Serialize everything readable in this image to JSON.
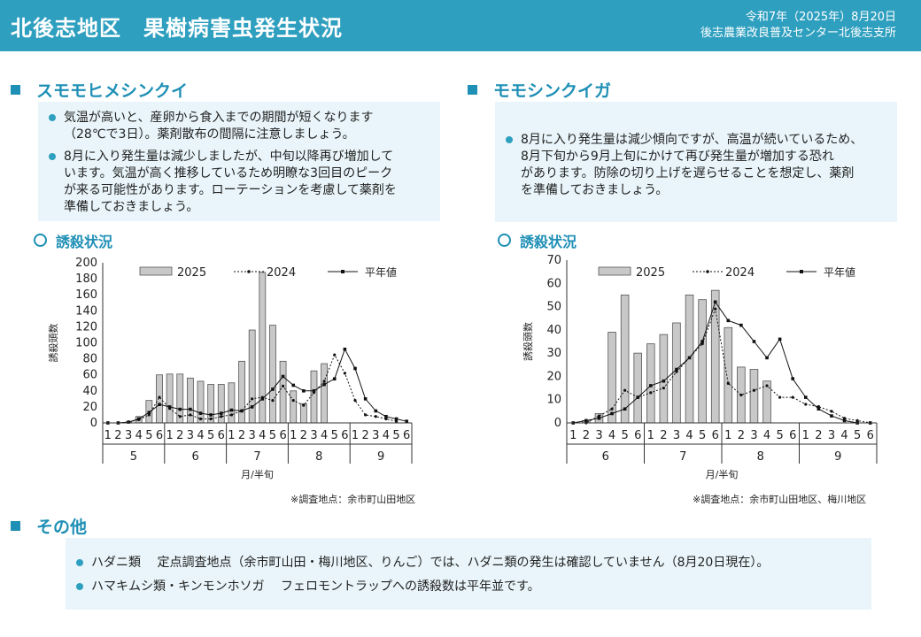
{
  "header": {
    "title": "北後志地区　果樹病害虫発生状況",
    "date": "令和7年（2025年）8月20日",
    "org": "後志農業改良普及センター北後志支所"
  },
  "left": {
    "title": "スモモヒメシンクイ",
    "bullets": [
      [
        "気温が高いと、産卵から食入までの期間が短くなります",
        "（28℃で3日）。薬剤散布の間隔に注意しましょう。"
      ],
      [
        "8月に入り発生量は減少しましたが、中旬以降再び増加して",
        "います。気温が高く推移しているため明瞭な3回目のピーク",
        "が来る可能性があります。ローテーションを考慮して薬剤を",
        "準備しておきましょう。"
      ]
    ],
    "chart_title": "誘殺状況",
    "note": "※調査地点：余市町山田地区"
  },
  "right": {
    "title": "モモシンクイガ",
    "bullets": [
      [
        "8月に入り発生量は減少傾向ですが、高温が続いているため、",
        "8月下旬から9月上旬にかけて再び発生量が増加する恐れ",
        "があります。防除の切り上げを遅らせることを想定し、薬剤",
        "を準備しておきましょう。"
      ]
    ],
    "chart_title": "誘殺状況",
    "note": "※調査地点：余市町山田地区、梅川地区"
  },
  "other": {
    "title": "その他",
    "items": [
      "ハダニ類　 定点調査地点（余市町山田・梅川地区、りんご）では、ハダニ類の発生は確認していません（8月20日現在）。",
      "ハマキムシ類・キンモンホソガ　 フェロモントラップへの誘殺数は平年並です。"
    ]
  },
  "chart_data": [
    {
      "type": "bar",
      "id": "sumomo",
      "title": "誘殺状況",
      "xlabel": "月/半旬",
      "ylabel": "誘殺頭数",
      "ylim": [
        0,
        200
      ],
      "yticks": [
        0,
        20,
        40,
        60,
        80,
        100,
        120,
        140,
        160,
        180,
        200
      ],
      "months": [
        {
          "label": "5",
          "halves": [
            "1",
            "2",
            "3",
            "4",
            "5",
            "6"
          ]
        },
        {
          "label": "6",
          "halves": [
            "1",
            "2",
            "3",
            "4",
            "5",
            "6"
          ]
        },
        {
          "label": "7",
          "halves": [
            "1",
            "2",
            "3",
            "4",
            "5",
            "6"
          ]
        },
        {
          "label": "8",
          "halves": [
            "1",
            "2",
            "3",
            "4",
            "5",
            "6"
          ]
        },
        {
          "label": "9",
          "halves": [
            "1",
            "2",
            "3",
            "4",
            "5",
            "6"
          ]
        }
      ],
      "legend": [
        "2025",
        "2024",
        "平年値"
      ],
      "series": [
        {
          "name": "2025",
          "kind": "bar",
          "values": [
            0,
            0,
            1,
            8,
            28,
            60,
            61,
            61,
            56,
            52,
            48,
            48,
            50,
            77,
            116,
            188,
            122,
            77,
            40,
            24,
            65,
            74,
            null,
            null,
            null,
            null,
            null,
            null,
            null,
            null
          ]
        },
        {
          "name": "2024",
          "kind": "dotted",
          "values": [
            0,
            0,
            1,
            4,
            10,
            32,
            18,
            8,
            10,
            5,
            5,
            8,
            10,
            15,
            30,
            32,
            28,
            46,
            28,
            22,
            38,
            52,
            85,
            62,
            28,
            10,
            8,
            5,
            2,
            null
          ]
        },
        {
          "name": "平年値",
          "kind": "solid",
          "values": [
            0,
            0,
            1,
            5,
            13,
            23,
            20,
            17,
            17,
            12,
            10,
            12,
            16,
            15,
            20,
            30,
            42,
            58,
            47,
            40,
            40,
            48,
            55,
            92,
            68,
            30,
            15,
            8,
            5,
            2
          ]
        }
      ]
    },
    {
      "type": "bar",
      "id": "momo",
      "title": "誘殺状況",
      "xlabel": "月/半旬",
      "ylabel": "誘殺頭数",
      "ylim": [
        0,
        70
      ],
      "yticks": [
        0,
        10,
        20,
        30,
        40,
        50,
        60,
        70
      ],
      "months": [
        {
          "label": "6",
          "halves": [
            "1",
            "2",
            "3",
            "4",
            "5",
            "6"
          ]
        },
        {
          "label": "7",
          "halves": [
            "1",
            "2",
            "3",
            "4",
            "5",
            "6"
          ]
        },
        {
          "label": "8",
          "halves": [
            "1",
            "2",
            "3",
            "4",
            "5",
            "6"
          ]
        },
        {
          "label": "9",
          "halves": [
            "1",
            "2",
            "3",
            "4",
            "5",
            "6"
          ]
        }
      ],
      "legend": [
        "2025",
        "2024",
        "平年値"
      ],
      "series": [
        {
          "name": "2025",
          "kind": "bar",
          "values": [
            0,
            1,
            4,
            39,
            55,
            30,
            34,
            38,
            43,
            55,
            53,
            57,
            41,
            24,
            23,
            18,
            null,
            null,
            null,
            null,
            null,
            null,
            null,
            null
          ]
        },
        {
          "name": "2024",
          "kind": "dotted",
          "values": [
            0,
            0,
            3,
            6,
            14,
            11,
            13,
            15,
            22,
            28,
            34,
            49,
            17,
            12,
            14,
            16,
            11,
            11,
            8,
            7,
            5,
            2,
            1,
            0
          ]
        },
        {
          "name": "平年値",
          "kind": "solid",
          "values": [
            0,
            1,
            2,
            4,
            6,
            11,
            16,
            18,
            23,
            28,
            35,
            52,
            44,
            42,
            35,
            28,
            36,
            19,
            11,
            6,
            3,
            1,
            0,
            0
          ]
        }
      ]
    }
  ]
}
